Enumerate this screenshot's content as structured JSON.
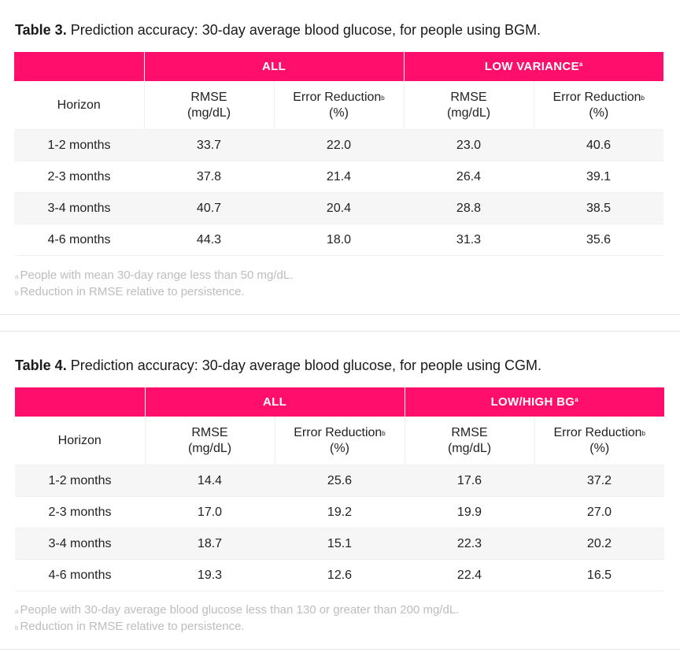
{
  "table3": {
    "caption_label": "Table 3.",
    "caption_text": "Prediction accuracy: 30-day average blood glucose, for people using BGM.",
    "group_all": "ALL",
    "group_second": "LOW VARIANCE",
    "group_second_mark": "a",
    "col_horizon": "Horizon",
    "col_rmse_1": "RMSE",
    "col_rmse_2": "(mg/dL)",
    "col_err_1": "Error Reduction",
    "col_err_mark": "b",
    "col_err_2": "(%)",
    "rows": [
      {
        "horizon": "1-2 months",
        "rmse_all": "33.7",
        "err_all": "22.0",
        "rmse_sub": "23.0",
        "err_sub": "40.6"
      },
      {
        "horizon": "2-3 months",
        "rmse_all": "37.8",
        "err_all": "21.4",
        "rmse_sub": "26.4",
        "err_sub": "39.1"
      },
      {
        "horizon": "3-4 months",
        "rmse_all": "40.7",
        "err_all": "20.4",
        "rmse_sub": "28.8",
        "err_sub": "38.5"
      },
      {
        "horizon": "4-6 months",
        "rmse_all": "44.3",
        "err_all": "18.0",
        "rmse_sub": "31.3",
        "err_sub": "35.6"
      }
    ],
    "note_a_mark": "a",
    "note_a": "People with mean 30-day range less than 50 mg/dL.",
    "note_b_mark": "b",
    "note_b": "Reduction in RMSE relative to persistence."
  },
  "table4": {
    "caption_label": "Table 4.",
    "caption_text": "Prediction accuracy: 30-day average blood glucose, for people using CGM.",
    "group_all": "ALL",
    "group_second": "LOW/HIGH BG",
    "group_second_mark": "a",
    "col_horizon": "Horizon",
    "col_rmse_1": "RMSE",
    "col_rmse_2": "(mg/dL)",
    "col_err_1": "Error Reduction",
    "col_err_mark": "b",
    "col_err_2": "(%)",
    "rows": [
      {
        "horizon": "1-2 months",
        "rmse_all": "14.4",
        "err_all": "25.6",
        "rmse_sub": "17.6",
        "err_sub": "37.2"
      },
      {
        "horizon": "2-3 months",
        "rmse_all": "17.0",
        "err_all": "19.2",
        "rmse_sub": "19.9",
        "err_sub": "27.0"
      },
      {
        "horizon": "3-4 months",
        "rmse_all": "18.7",
        "err_all": "15.1",
        "rmse_sub": "22.3",
        "err_sub": "20.2"
      },
      {
        "horizon": "4-6 months",
        "rmse_all": "19.3",
        "err_all": "12.6",
        "rmse_sub": "22.4",
        "err_sub": "16.5"
      }
    ],
    "note_a_mark": "a",
    "note_a": "People with 30-day average blood glucose less than 130 or greater than 200 mg/dL.",
    "note_b_mark": "b",
    "note_b": "Reduction in RMSE relative to persistence."
  },
  "colors": {
    "accent": "#ff0f6b",
    "shaded_row": "#f6f6f6",
    "note_text": "#bdbdbd"
  }
}
